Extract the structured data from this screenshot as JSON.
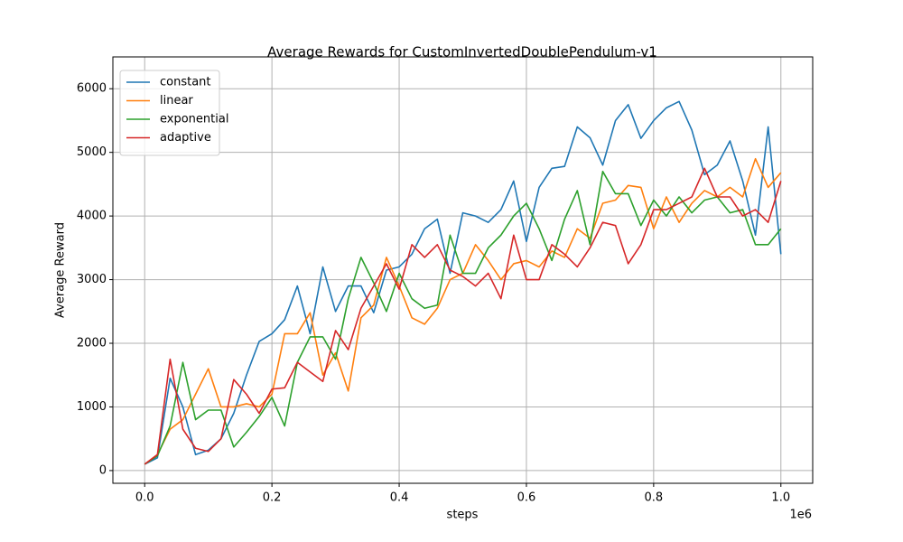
{
  "chart_data": {
    "type": "line",
    "title": "Average Rewards for CustomInvertedDoublePendulum-v1",
    "x_label": "steps",
    "y_label": "Average Reward",
    "x_offset_label": "1e6",
    "x": [
      0,
      20000,
      40000,
      60000,
      80000,
      100000,
      120000,
      140000,
      160000,
      180000,
      200000,
      220000,
      240000,
      260000,
      280000,
      300000,
      320000,
      340000,
      360000,
      380000,
      400000,
      420000,
      440000,
      460000,
      480000,
      500000,
      520000,
      540000,
      560000,
      580000,
      600000,
      620000,
      640000,
      660000,
      680000,
      700000,
      720000,
      740000,
      760000,
      780000,
      800000,
      820000,
      840000,
      860000,
      880000,
      900000,
      920000,
      940000,
      960000,
      980000,
      1000000
    ],
    "series": [
      {
        "name": "constant",
        "color": "#1f77b4",
        "values": [
          100,
          200,
          1450,
          1000,
          250,
          320,
          500,
          900,
          1500,
          2030,
          2150,
          2370,
          2900,
          2150,
          3200,
          2500,
          2900,
          2900,
          2480,
          3150,
          3200,
          3400,
          3800,
          3950,
          3100,
          4050,
          4000,
          3900,
          4100,
          4550,
          3600,
          4450,
          4750,
          4780,
          5400,
          5230,
          4800,
          5500,
          5750,
          5220,
          5500,
          5700,
          5800,
          5350,
          4650,
          4800,
          5180,
          4550,
          3700,
          5400,
          3400
        ]
      },
      {
        "name": "linear",
        "color": "#ff7f0e",
        "values": [
          100,
          250,
          650,
          800,
          1200,
          1600,
          1000,
          1000,
          1050,
          1000,
          1200,
          2150,
          2150,
          2480,
          1500,
          1850,
          1250,
          2400,
          2600,
          3350,
          2900,
          2400,
          2300,
          2550,
          3000,
          3100,
          3550,
          3300,
          3000,
          3250,
          3300,
          3200,
          3450,
          3350,
          3800,
          3650,
          4200,
          4250,
          4480,
          4450,
          3800,
          4300,
          3900,
          4200,
          4400,
          4300,
          4450,
          4300,
          4900,
          4450,
          4680
        ]
      },
      {
        "name": "exponential",
        "color": "#2ca02c",
        "values": [
          100,
          230,
          700,
          1700,
          800,
          950,
          950,
          370,
          600,
          850,
          1150,
          700,
          1700,
          2100,
          2100,
          1750,
          2700,
          3350,
          2950,
          2500,
          3100,
          2700,
          2550,
          2600,
          3700,
          3100,
          3100,
          3500,
          3700,
          4000,
          4200,
          3800,
          3300,
          3950,
          4400,
          3550,
          4700,
          4350,
          4350,
          3850,
          4250,
          4000,
          4300,
          4050,
          4250,
          4300,
          4050,
          4100,
          3550,
          3550,
          3800
        ]
      },
      {
        "name": "adaptive",
        "color": "#d62728",
        "values": [
          100,
          250,
          1750,
          650,
          350,
          300,
          500,
          1430,
          1200,
          900,
          1280,
          1300,
          1700,
          1550,
          1400,
          2200,
          1900,
          2550,
          2900,
          3250,
          2850,
          3550,
          3350,
          3550,
          3150,
          3050,
          2900,
          3100,
          2700,
          3700,
          3000,
          3000,
          3550,
          3400,
          3200,
          3500,
          3900,
          3850,
          3250,
          3550,
          4100,
          4100,
          4200,
          4300,
          4750,
          4300,
          4300,
          4000,
          4100,
          3900,
          4550
        ]
      }
    ],
    "xlim": [
      -50000,
      1050000
    ],
    "ylim": [
      -200,
      6500
    ],
    "xticks": [
      {
        "value": 0,
        "label": "0.0"
      },
      {
        "value": 200000,
        "label": "0.2"
      },
      {
        "value": 400000,
        "label": "0.4"
      },
      {
        "value": 600000,
        "label": "0.6"
      },
      {
        "value": 800000,
        "label": "0.8"
      },
      {
        "value": 1000000,
        "label": "1.0"
      }
    ],
    "yticks": [
      0,
      1000,
      2000,
      3000,
      4000,
      5000,
      6000
    ],
    "grid": true,
    "legend": "upper-left"
  }
}
